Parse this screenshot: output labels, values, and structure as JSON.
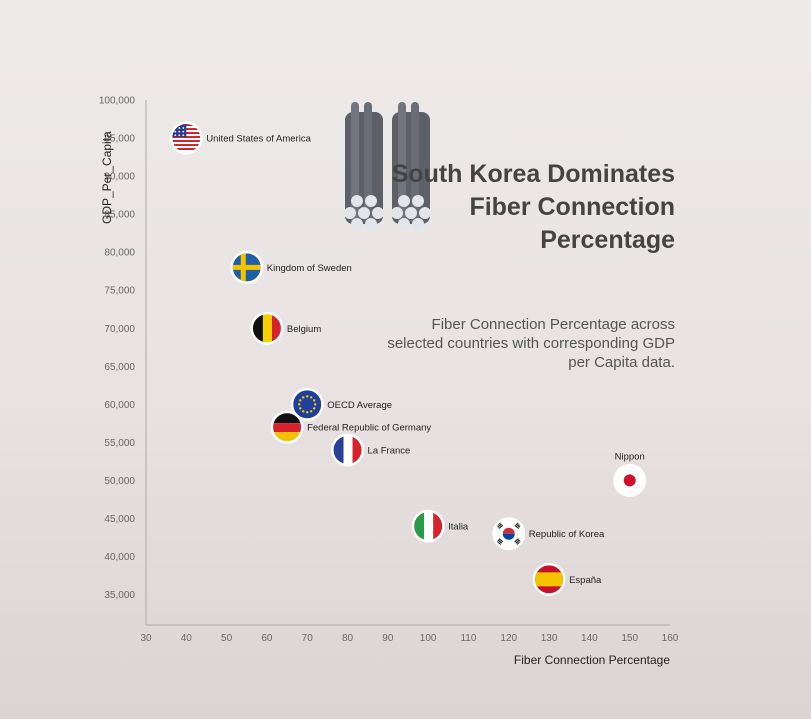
{
  "title": "South Korea Dominates Fiber Connection Percentage",
  "subtitle": "Fiber Connection Percentage across selected countries with corresponding GDP per Capita data.",
  "chart_data": {
    "type": "scatter",
    "xlabel": "Fiber Connection Percentage",
    "ylabel": "GDP_Per_Capita",
    "xlim": [
      30,
      160
    ],
    "ylim": [
      31000,
      100000
    ],
    "x_ticks": [
      "30",
      "40",
      "50",
      "60",
      "70",
      "80",
      "90",
      "100",
      "110",
      "120",
      "130",
      "140",
      "150",
      "160"
    ],
    "y_ticks": [
      "35,000",
      "40,000",
      "45,000",
      "50,000",
      "55,000",
      "60,000",
      "65,000",
      "70,000",
      "75,000",
      "80,000",
      "85,000",
      "90,000",
      "95,000",
      "100,000"
    ],
    "points": [
      {
        "label": "United States of America",
        "x": 40,
        "y": 95000,
        "flag": "flag-usa-icon"
      },
      {
        "label": "Kingdom of Sweden",
        "x": 55,
        "y": 78000,
        "flag": "flag-sweden-icon"
      },
      {
        "label": "Belgium",
        "x": 60,
        "y": 70000,
        "flag": "flag-belgium-icon"
      },
      {
        "label": "OECD Average",
        "x": 70,
        "y": 60000,
        "flag": "flag-eu-icon"
      },
      {
        "label": "Federal Republic of Germany",
        "x": 65,
        "y": 57000,
        "flag": "flag-germany-icon"
      },
      {
        "label": "La France",
        "x": 80,
        "y": 54000,
        "flag": "flag-france-icon"
      },
      {
        "label": "Nippon",
        "x": 150,
        "y": 50000,
        "flag": "flag-japan-icon"
      },
      {
        "label": "Italia",
        "x": 100,
        "y": 44000,
        "flag": "flag-italy-icon"
      },
      {
        "label": "Republic of Korea",
        "x": 120,
        "y": 43000,
        "flag": "flag-korea-icon"
      },
      {
        "label": "España",
        "x": 130,
        "y": 37000,
        "flag": "flag-spain-icon"
      }
    ],
    "grid": false,
    "legend": "none"
  }
}
